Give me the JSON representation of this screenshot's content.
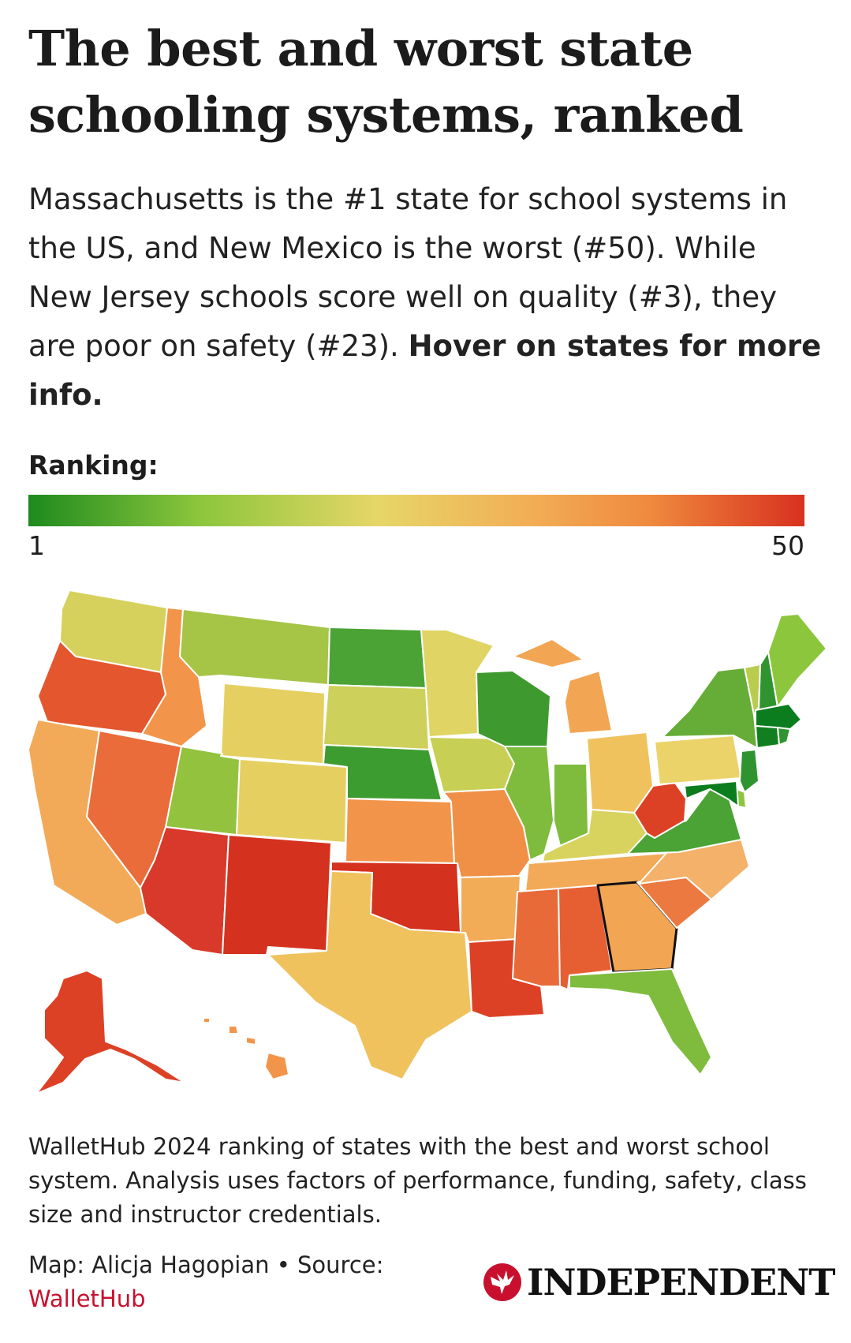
{
  "header": {
    "title": "The best and worst state schooling systems, ranked",
    "dek_text": "Massachusetts is the #1 state for school systems in the US, and New Mexico is the worst (#50). While New Jersey schools score well on quality (#3), they are poor on safety (#23).",
    "dek_cta": "Hover on states for more info."
  },
  "legend": {
    "label": "Ranking:",
    "min": "1",
    "max": "50",
    "colors": [
      "#1e8a1e",
      "#8cc63c",
      "#e6d668",
      "#f2ad55",
      "#ef8a3e",
      "#d8311f"
    ]
  },
  "map": {
    "highlighted_state": "GA",
    "states": [
      {
        "id": "WA",
        "color": "#d6d15d"
      },
      {
        "id": "OR",
        "color": "#e4562e"
      },
      {
        "id": "CA",
        "color": "#f2aa58"
      },
      {
        "id": "NV",
        "color": "#e96c3a"
      },
      {
        "id": "ID",
        "color": "#f2954a"
      },
      {
        "id": "MT",
        "color": "#a6c547"
      },
      {
        "id": "WY",
        "color": "#e5cf60"
      },
      {
        "id": "UT",
        "color": "#93c23f"
      },
      {
        "id": "AZ",
        "color": "#d9392a"
      },
      {
        "id": "CO",
        "color": "#e5cf60"
      },
      {
        "id": "NM",
        "color": "#d5311f"
      },
      {
        "id": "ND",
        "color": "#4aa334"
      },
      {
        "id": "SD",
        "color": "#cdd05a"
      },
      {
        "id": "NE",
        "color": "#3d9c2f"
      },
      {
        "id": "KS",
        "color": "#f2954a"
      },
      {
        "id": "OK",
        "color": "#d5311f"
      },
      {
        "id": "TX",
        "color": "#efc25d"
      },
      {
        "id": "MN",
        "color": "#dfd464"
      },
      {
        "id": "IA",
        "color": "#c8cf55"
      },
      {
        "id": "MO",
        "color": "#f09047"
      },
      {
        "id": "AR",
        "color": "#f2ac58"
      },
      {
        "id": "LA",
        "color": "#dc4126"
      },
      {
        "id": "WI",
        "color": "#3e9a2e"
      },
      {
        "id": "IL",
        "color": "#7fbb3c"
      },
      {
        "id": "MI",
        "color": "#f2a654"
      },
      {
        "id": "IN",
        "color": "#7fbb3c"
      },
      {
        "id": "OH",
        "color": "#efc25d"
      },
      {
        "id": "KY",
        "color": "#d8d35f"
      },
      {
        "id": "TN",
        "color": "#f2aa58"
      },
      {
        "id": "MS",
        "color": "#e86a38"
      },
      {
        "id": "AL",
        "color": "#e65f33"
      },
      {
        "id": "GA",
        "color": "#f2a654"
      },
      {
        "id": "FL",
        "color": "#7fbb3c"
      },
      {
        "id": "SC",
        "color": "#ec7940"
      },
      {
        "id": "NC",
        "color": "#f4b16a"
      },
      {
        "id": "VA",
        "color": "#4aa334"
      },
      {
        "id": "WV",
        "color": "#dc4126"
      },
      {
        "id": "PA",
        "color": "#ebd36a"
      },
      {
        "id": "NY",
        "color": "#65ad36"
      },
      {
        "id": "VT",
        "color": "#b9cc4e"
      },
      {
        "id": "NH",
        "color": "#2f9430"
      },
      {
        "id": "ME",
        "color": "#8cc63c"
      },
      {
        "id": "MA",
        "color": "#0b7d1e"
      },
      {
        "id": "CT",
        "color": "#117f20"
      },
      {
        "id": "RI",
        "color": "#2f9430"
      },
      {
        "id": "NJ",
        "color": "#2f9430"
      },
      {
        "id": "DE",
        "color": "#8cc63c"
      },
      {
        "id": "MD",
        "color": "#0b7d1e"
      },
      {
        "id": "AK",
        "color": "#dc4126"
      },
      {
        "id": "HI",
        "color": "#f2954a"
      }
    ]
  },
  "footer": {
    "caption": "WalletHub 2024 ranking of states with the best and worst school system. Analysis uses factors of performance, funding, safety, class size and instructor credentials.",
    "credit_prefix": "Map: Alicja Hagopian • Source:",
    "source_name": "WalletHub",
    "logo_text": "INDEPENDENT",
    "logo_color": "#c8102e"
  }
}
